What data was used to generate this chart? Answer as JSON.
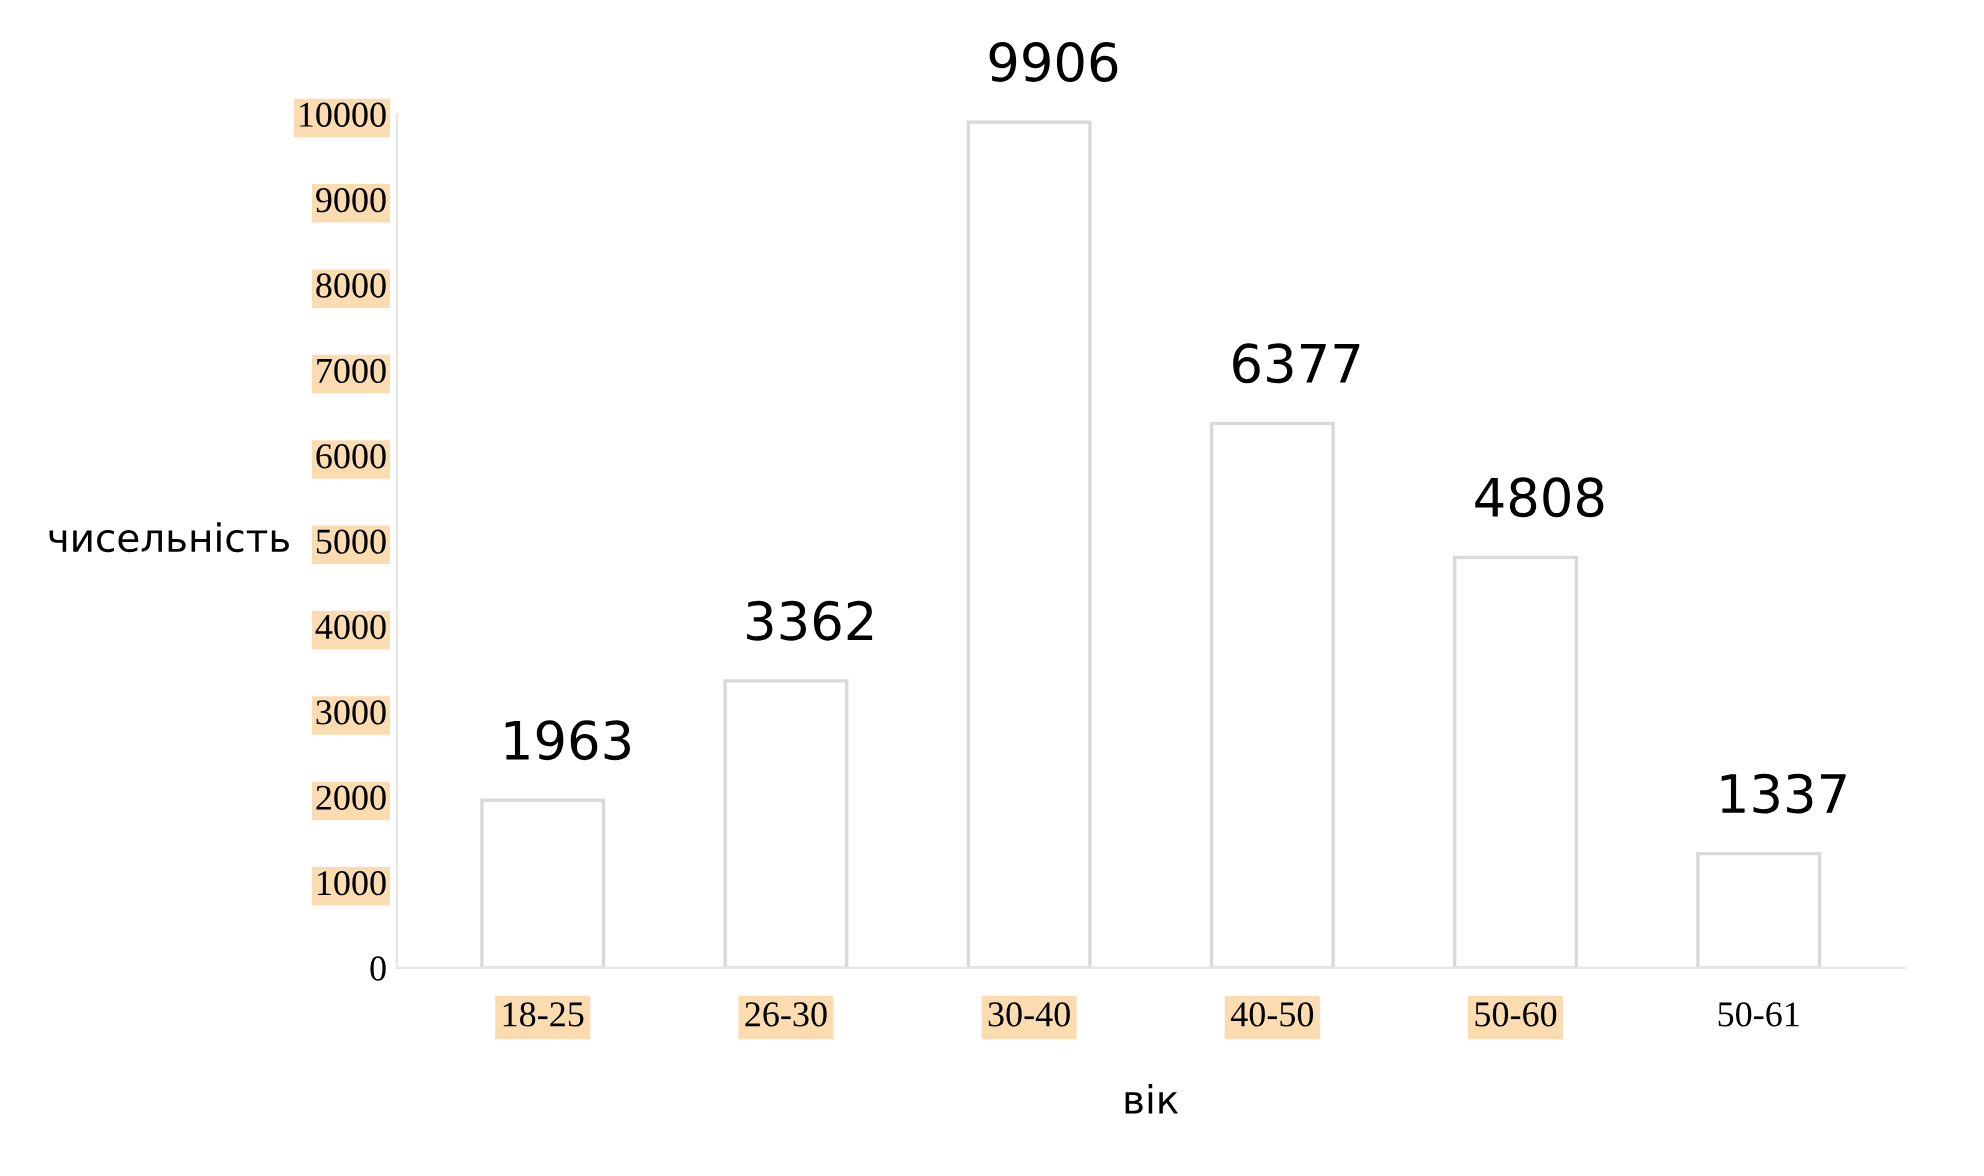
{
  "chart_data": {
    "type": "bar",
    "xlabel": "вік",
    "ylabel": "чисельність",
    "categories": [
      "18-25",
      "26-30",
      "30-40",
      "40-50",
      "50-60",
      "50-61"
    ],
    "values": [
      1963,
      3362,
      9906,
      6377,
      4808,
      1337
    ],
    "color": "#ffffff",
    "ylim": [
      0,
      10000
    ],
    "yticks": [
      0,
      1000,
      2000,
      3000,
      4000,
      5000,
      6000,
      7000,
      8000,
      9000,
      10000
    ],
    "data_labels": true,
    "grid": false,
    "legend": false
  }
}
